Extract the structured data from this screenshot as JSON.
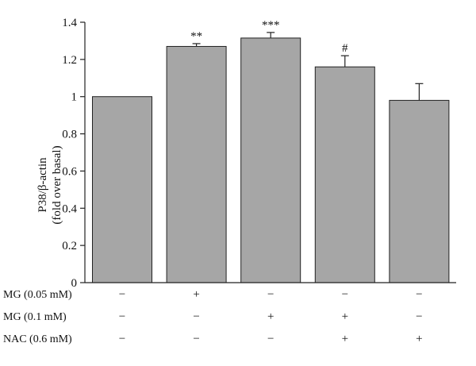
{
  "chart_data": {
    "type": "bar",
    "ylabel_line1": "P38/β-actin",
    "ylabel_line2": "(fold over basal)",
    "ylim": [
      0,
      1.4
    ],
    "yticks": [
      "0",
      "0.2",
      "0.4",
      "0.6",
      "0.8",
      "1",
      "1.2",
      "1.4"
    ],
    "ytick_values": [
      0,
      0.2,
      0.4,
      0.6,
      0.8,
      1.0,
      1.2,
      1.4
    ],
    "values": [
      1.0,
      1.27,
      1.315,
      1.16,
      0.98
    ],
    "errors": [
      0,
      0.015,
      0.03,
      0.06,
      0.09
    ],
    "significance": [
      "",
      "**",
      "***",
      "#",
      ""
    ],
    "bar_color": "#a6a6a6",
    "conditions": [
      {
        "label": "MG (0.05 mM)",
        "signs": [
          "−",
          "+",
          "−",
          "−",
          "−"
        ]
      },
      {
        "label": "MG (0.1 mM)",
        "signs": [
          "−",
          "−",
          "+",
          "+",
          "−"
        ]
      },
      {
        "label": "NAC (0.6 mM)",
        "signs": [
          "−",
          "−",
          "−",
          "+",
          "+"
        ]
      }
    ]
  }
}
